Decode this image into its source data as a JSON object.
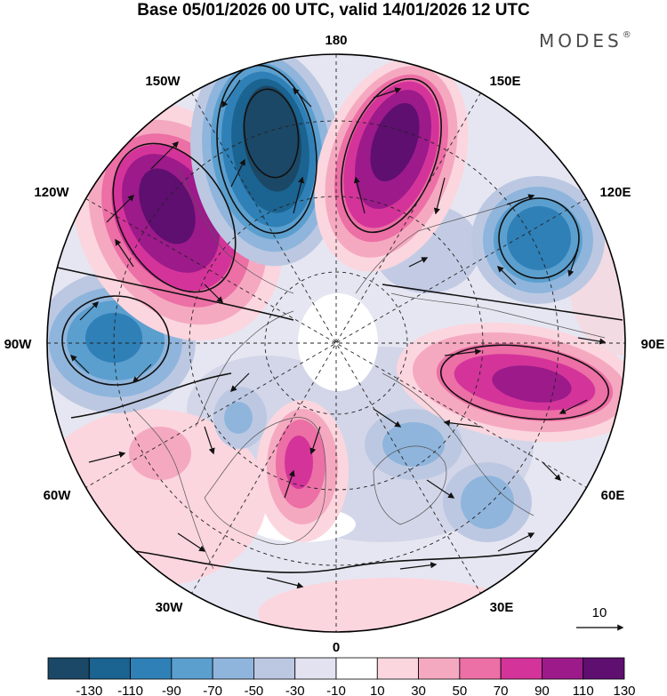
{
  "header": {
    "title": "Base 05/01/2026 00 UTC, valid 14/01/2026 12 UTC",
    "brand": "MODES",
    "brand_mark": "®"
  },
  "map": {
    "projection": "north polar stereographic",
    "longitude_labels": {
      "lon_180": "180",
      "lon_150e": "150E",
      "lon_120e": "120E",
      "lon_90e": "90E",
      "lon_60e": "60E",
      "lon_30e": "30E",
      "lon_0": "0",
      "lon_30w": "30W",
      "lon_60w": "60W",
      "lon_90w": "90W",
      "lon_120w": "120W",
      "lon_150w": "150W"
    },
    "vector_reference_label": "10",
    "anomaly_centers": [
      {
        "region": "North Pacific near 155W",
        "sign": "negative",
        "approx_value": -130
      },
      {
        "region": "Northeast Pacific / Alaska 125W",
        "sign": "positive",
        "approx_value": 130
      },
      {
        "region": "Western Pacific 165E",
        "sign": "positive",
        "approx_value": 130
      },
      {
        "region": "East Siberia 120E",
        "sign": "negative",
        "approx_value": -90
      },
      {
        "region": "Central Siberia 90E",
        "sign": "positive",
        "approx_value": 110
      },
      {
        "region": "Hudson Bay / Canada 90W",
        "sign": "negative",
        "approx_value": -90
      },
      {
        "region": "Greenland 20W",
        "sign": "positive",
        "approx_value": 90
      },
      {
        "region": "Scandinavia 25E",
        "sign": "negative",
        "approx_value": -50
      },
      {
        "region": "Western Russia 50E",
        "sign": "negative",
        "approx_value": -50
      },
      {
        "region": "North Atlantic 60W",
        "sign": "positive",
        "approx_value": 30
      }
    ]
  },
  "colorbar": {
    "labels": [
      "-130",
      "-110",
      "-90",
      "-70",
      "-50",
      "-30",
      "-10",
      "10",
      "30",
      "50",
      "70",
      "90",
      "110",
      "130"
    ],
    "colors": [
      "#1b4866",
      "#1b6390",
      "#2f80b7",
      "#5b9fcf",
      "#8fb5dc",
      "#bcc8e2",
      "#e2e2f0",
      "#ffffff",
      "#fbd6de",
      "#f5a9c0",
      "#ec6fa5",
      "#d4349a",
      "#9c1a8a",
      "#5e0f70"
    ]
  }
}
